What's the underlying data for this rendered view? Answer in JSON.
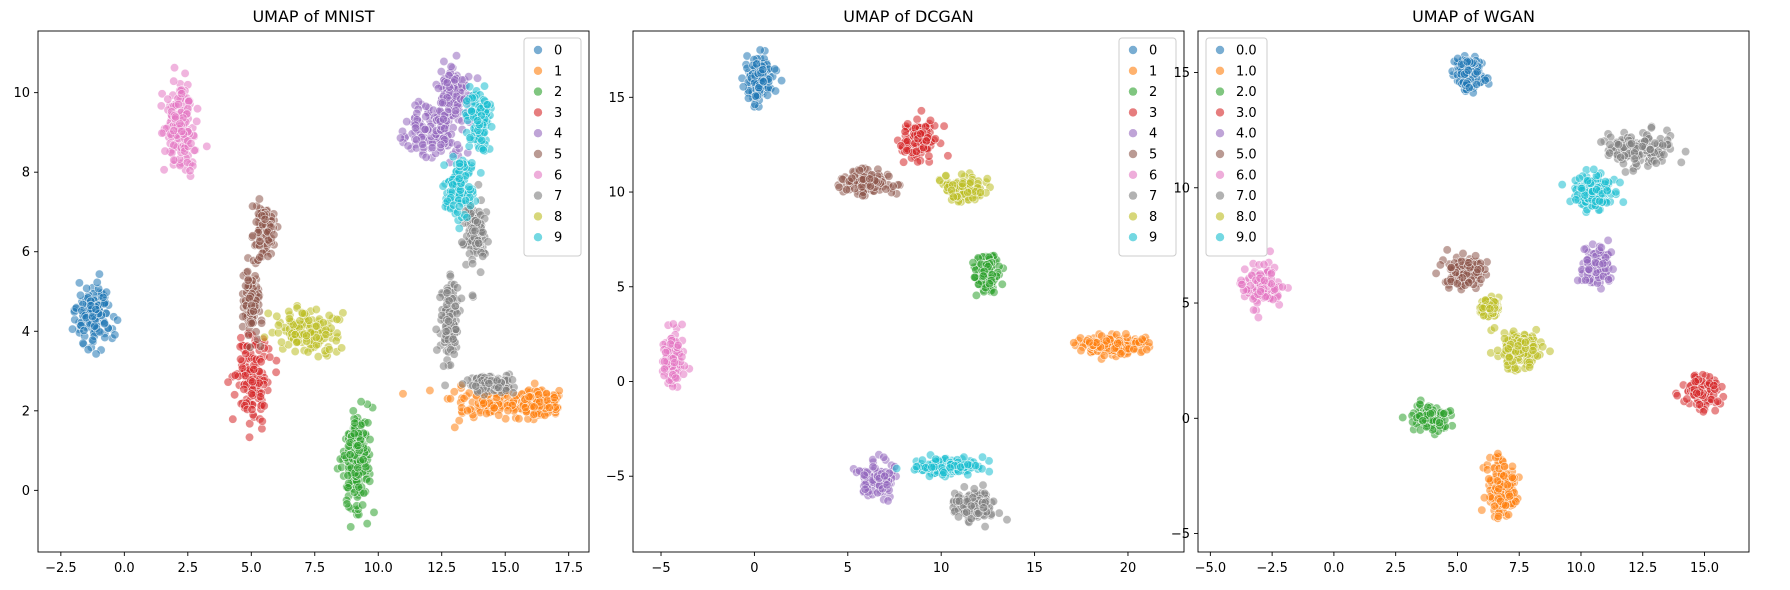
{
  "colors": [
    "#1f77b4",
    "#ff7f0e",
    "#2ca02c",
    "#d62728",
    "#9467bd",
    "#8c564b",
    "#e377c2",
    "#7f7f7f",
    "#bcbd22",
    "#17becf"
  ],
  "chart_data": [
    {
      "type": "scatter",
      "title": "UMAP of MNIST",
      "xlabel": "",
      "ylabel": "",
      "xlim": [
        -3.4,
        18.3
      ],
      "ylim": [
        -1.55,
        11.55
      ],
      "xticks": [
        -2.5,
        0.0,
        2.5,
        5.0,
        7.5,
        10.0,
        12.5,
        15.0,
        17.5
      ],
      "xtick_labels": [
        "−2.5",
        "0.0",
        "2.5",
        "5.0",
        "7.5",
        "10.0",
        "12.5",
        "15.0",
        "17.5"
      ],
      "yticks": [
        0,
        2,
        4,
        6,
        8,
        10
      ],
      "ytick_labels": [
        "0",
        "2",
        "4",
        "6",
        "8",
        "10"
      ],
      "grid": false,
      "legend_position": "top-right",
      "series": [
        {
          "name": "0",
          "clusters": [
            {
              "cx": -1.2,
              "cy": 4.35,
              "rx": 0.85,
              "ry": 1.05
            }
          ]
        },
        {
          "name": "1",
          "clusters": [
            {
              "cx": 15.0,
              "cy": 2.15,
              "rx": 2.4,
              "ry": 0.45
            },
            {
              "cx": 16.3,
              "cy": 2.2,
              "rx": 0.9,
              "ry": 0.35
            }
          ]
        },
        {
          "name": "2",
          "clusters": [
            {
              "cx": 9.1,
              "cy": 0.5,
              "rx": 0.65,
              "ry": 1.35
            },
            {
              "cx": 9.2,
              "cy": 1.3,
              "rx": 0.4,
              "ry": 0.7
            }
          ]
        },
        {
          "name": "3",
          "clusters": [
            {
              "cx": 5.0,
              "cy": 2.8,
              "rx": 0.75,
              "ry": 1.2
            }
          ]
        },
        {
          "name": "4",
          "clusters": [
            {
              "cx": 12.3,
              "cy": 9.1,
              "rx": 1.2,
              "ry": 0.9
            },
            {
              "cx": 13.0,
              "cy": 10.1,
              "rx": 0.7,
              "ry": 0.7
            }
          ]
        },
        {
          "name": "5",
          "clusters": [
            {
              "cx": 5.0,
              "cy": 4.8,
              "rx": 0.4,
              "ry": 1.1
            },
            {
              "cx": 5.5,
              "cy": 6.6,
              "rx": 0.45,
              "ry": 0.8
            }
          ]
        },
        {
          "name": "6",
          "clusters": [
            {
              "cx": 2.2,
              "cy": 9.2,
              "rx": 0.75,
              "ry": 1.45
            }
          ]
        },
        {
          "name": "7",
          "clusters": [
            {
              "cx": 12.8,
              "cy": 4.2,
              "rx": 0.4,
              "ry": 1.4
            },
            {
              "cx": 13.8,
              "cy": 6.5,
              "rx": 0.55,
              "ry": 0.95
            },
            {
              "cx": 14.5,
              "cy": 2.7,
              "rx": 1.0,
              "ry": 0.25
            }
          ]
        },
        {
          "name": "8",
          "clusters": [
            {
              "cx": 7.2,
              "cy": 4.0,
              "rx": 1.35,
              "ry": 0.6
            }
          ]
        },
        {
          "name": "9",
          "clusters": [
            {
              "cx": 13.2,
              "cy": 7.6,
              "rx": 0.6,
              "ry": 0.9
            },
            {
              "cx": 14.0,
              "cy": 9.3,
              "rx": 0.55,
              "ry": 0.9
            }
          ]
        }
      ]
    },
    {
      "type": "scatter",
      "title": "UMAP of DCGAN",
      "xlabel": "",
      "ylabel": "",
      "xlim": [
        -6.5,
        23.0
      ],
      "ylim": [
        -9.0,
        18.5
      ],
      "xticks": [
        -5,
        0,
        5,
        10,
        15,
        20
      ],
      "xtick_labels": [
        "−5",
        "0",
        "5",
        "10",
        "15",
        "20"
      ],
      "yticks": [
        -5,
        0,
        5,
        10,
        15
      ],
      "ytick_labels": [
        "−5",
        "0",
        "5",
        "10",
        "15"
      ],
      "grid": false,
      "legend_position": "top-right",
      "series": [
        {
          "name": "0",
          "clusters": [
            {
              "cx": 0.3,
              "cy": 15.9,
              "rx": 0.9,
              "ry": 1.3
            }
          ]
        },
        {
          "name": "1",
          "clusters": [
            {
              "cx": 19.2,
              "cy": 1.9,
              "rx": 2.3,
              "ry": 0.55
            }
          ]
        },
        {
          "name": "2",
          "clusters": [
            {
              "cx": 12.4,
              "cy": 5.8,
              "rx": 0.75,
              "ry": 1.2
            }
          ]
        },
        {
          "name": "3",
          "clusters": [
            {
              "cx": 8.8,
              "cy": 12.7,
              "rx": 1.1,
              "ry": 1.0
            }
          ]
        },
        {
          "name": "4",
          "clusters": [
            {
              "cx": 6.6,
              "cy": -5.2,
              "rx": 1.0,
              "ry": 1.0
            }
          ]
        },
        {
          "name": "5",
          "clusters": [
            {
              "cx": 6.0,
              "cy": 10.5,
              "rx": 1.5,
              "ry": 0.75
            }
          ]
        },
        {
          "name": "6",
          "clusters": [
            {
              "cx": -4.4,
              "cy": 1.1,
              "rx": 0.55,
              "ry": 1.6
            }
          ]
        },
        {
          "name": "7",
          "clusters": [
            {
              "cx": 11.8,
              "cy": -6.6,
              "rx": 1.2,
              "ry": 0.9
            }
          ]
        },
        {
          "name": "8",
          "clusters": [
            {
              "cx": 11.2,
              "cy": 10.2,
              "rx": 1.3,
              "ry": 0.75
            }
          ]
        },
        {
          "name": "9",
          "clusters": [
            {
              "cx": 10.2,
              "cy": -4.5,
              "rx": 2.0,
              "ry": 0.5
            }
          ]
        }
      ]
    },
    {
      "type": "scatter",
      "title": "UMAP of WGAN",
      "xlabel": "",
      "ylabel": "",
      "xlim": [
        -5.5,
        16.8
      ],
      "ylim": [
        -5.8,
        16.8
      ],
      "xticks": [
        -5.0,
        -2.5,
        0.0,
        2.5,
        5.0,
        7.5,
        10.0,
        12.5,
        15.0
      ],
      "xtick_labels": [
        "−5.0",
        "−2.5",
        "0.0",
        "2.5",
        "5.0",
        "7.5",
        "10.0",
        "12.5",
        "15.0"
      ],
      "yticks": [
        -5,
        0,
        5,
        10,
        15
      ],
      "ytick_labels": [
        "−5",
        "0",
        "5",
        "10",
        "15"
      ],
      "grid": false,
      "legend_position": "top-left",
      "series": [
        {
          "name": "0.0",
          "clusters": [
            {
              "cx": 5.5,
              "cy": 14.9,
              "rx": 0.75,
              "ry": 0.9
            }
          ]
        },
        {
          "name": "1.0",
          "clusters": [
            {
              "cx": 6.8,
              "cy": -3.0,
              "rx": 0.7,
              "ry": 1.45
            }
          ]
        },
        {
          "name": "2.0",
          "clusters": [
            {
              "cx": 3.9,
              "cy": 0.0,
              "rx": 0.85,
              "ry": 0.75
            }
          ]
        },
        {
          "name": "3.0",
          "clusters": [
            {
              "cx": 14.9,
              "cy": 1.2,
              "rx": 0.8,
              "ry": 0.8
            }
          ]
        },
        {
          "name": "4.0",
          "clusters": [
            {
              "cx": 10.6,
              "cy": 6.6,
              "rx": 0.75,
              "ry": 0.95
            }
          ]
        },
        {
          "name": "5.0",
          "clusters": [
            {
              "cx": 5.3,
              "cy": 6.3,
              "rx": 0.95,
              "ry": 0.8
            }
          ]
        },
        {
          "name": "6.0",
          "clusters": [
            {
              "cx": -2.9,
              "cy": 5.8,
              "rx": 0.95,
              "ry": 0.95
            }
          ]
        },
        {
          "name": "7.0",
          "clusters": [
            {
              "cx": 12.3,
              "cy": 11.7,
              "rx": 1.5,
              "ry": 0.8
            }
          ]
        },
        {
          "name": "8.0",
          "clusters": [
            {
              "cx": 7.5,
              "cy": 2.9,
              "rx": 1.0,
              "ry": 1.0
            },
            {
              "cx": 6.3,
              "cy": 4.8,
              "rx": 0.5,
              "ry": 0.5
            }
          ]
        },
        {
          "name": "9.0",
          "clusters": [
            {
              "cx": 10.5,
              "cy": 9.8,
              "rx": 1.0,
              "ry": 0.85
            }
          ]
        }
      ]
    }
  ]
}
